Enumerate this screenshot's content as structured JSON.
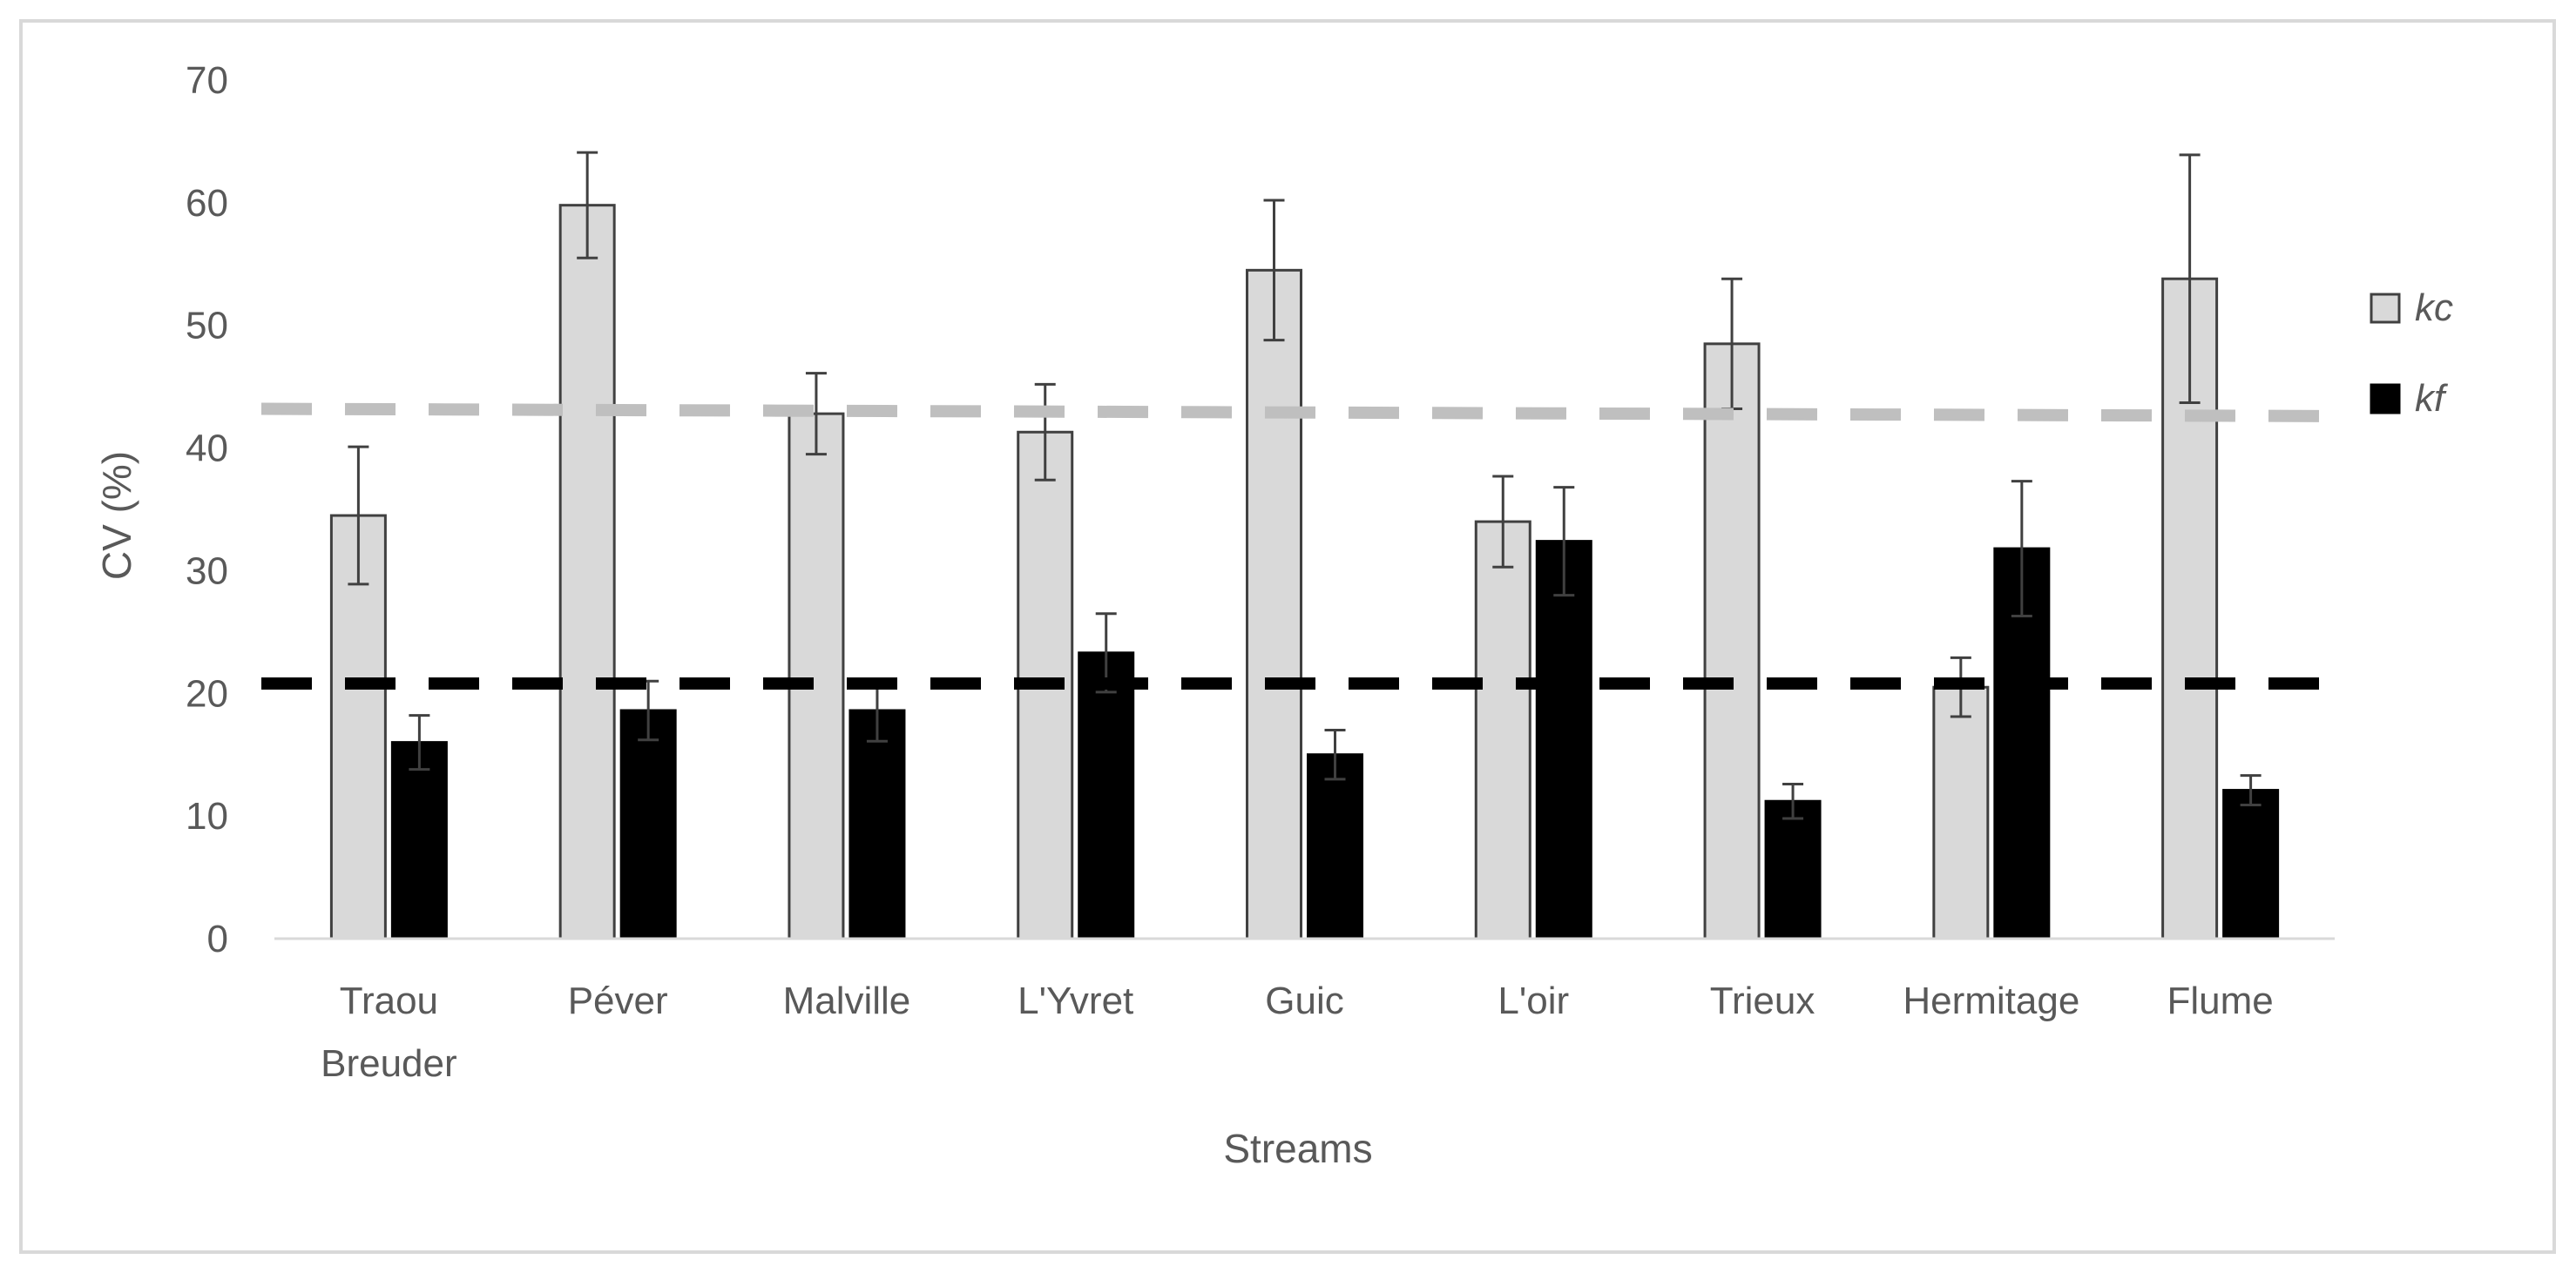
{
  "chart_data": {
    "type": "bar",
    "xlabel": "Streams",
    "ylabel": "CV (%)",
    "ylim": [
      0,
      70
    ],
    "yticks": [
      0,
      10,
      20,
      30,
      40,
      50,
      60,
      70
    ],
    "grid": false,
    "legend_position": "right",
    "categories": [
      [
        "Traou",
        "Breuder"
      ],
      [
        "Péver"
      ],
      [
        "Malville"
      ],
      [
        "L'Yvret"
      ],
      [
        "Guic"
      ],
      [
        "L'oir"
      ],
      [
        "Trieux"
      ],
      [
        "Hermitage"
      ],
      [
        "Flume"
      ]
    ],
    "series": [
      {
        "name": "kc",
        "color": "#d9d9d9",
        "values": [
          34.5,
          59.8,
          42.8,
          41.3,
          54.5,
          34.0,
          48.5,
          20.5,
          53.8
        ],
        "error": [
          5.6,
          4.3,
          3.3,
          3.9,
          5.7,
          3.7,
          5.3,
          2.4,
          10.1
        ]
      },
      {
        "name": "kf",
        "color": "#000000",
        "values": [
          16.0,
          18.6,
          18.6,
          23.3,
          15.0,
          32.4,
          11.2,
          31.8,
          12.1
        ],
        "error": [
          2.2,
          2.4,
          2.5,
          3.2,
          2.0,
          4.4,
          1.4,
          5.5,
          1.2
        ]
      }
    ],
    "reference_lines": [
      {
        "series": "kc",
        "color": "#bfbfbf",
        "y_start": 43.2,
        "y_end": 42.6
      },
      {
        "series": "kf",
        "color": "#000000",
        "y_start": 20.8,
        "y_end": 20.8
      }
    ]
  }
}
